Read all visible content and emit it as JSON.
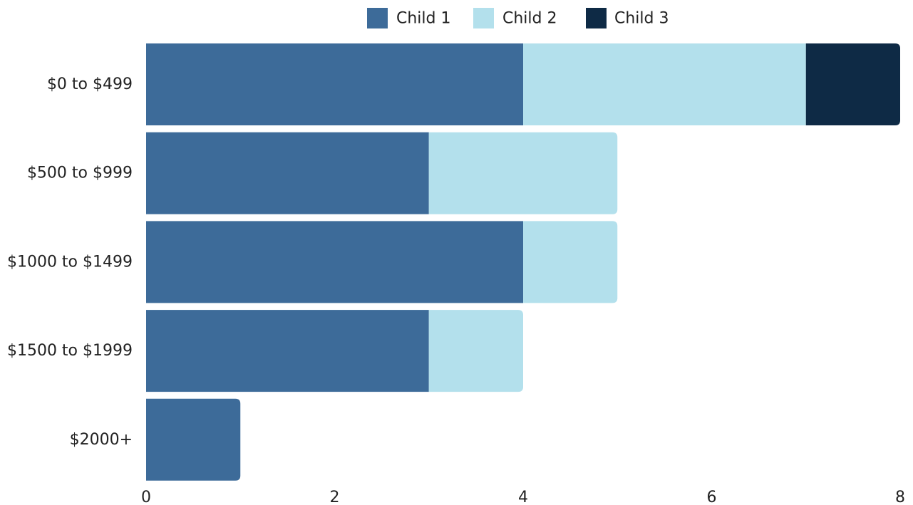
{
  "chart_data": {
    "type": "bar",
    "orientation": "horizontal",
    "stacked": true,
    "categories": [
      "$0 to $499",
      "$500 to $999",
      "$1000 to $1499",
      "$1500 to $1999",
      "$2000+"
    ],
    "series": [
      {
        "name": "Child 1",
        "color": "#3d6b99",
        "values": [
          4,
          3,
          4,
          3,
          1
        ]
      },
      {
        "name": "Child 2",
        "color": "#b3e0ec",
        "values": [
          3,
          2,
          1,
          1,
          0
        ]
      },
      {
        "name": "Child 3",
        "color": "#0e2a45",
        "values": [
          1,
          0,
          0,
          0,
          0
        ]
      }
    ],
    "xlim": [
      0,
      8
    ],
    "xticks": [
      "0",
      "2",
      "4",
      "6",
      "8"
    ],
    "xlabel": "",
    "ylabel": "",
    "title": "",
    "grid": false,
    "legend_position": "top"
  }
}
